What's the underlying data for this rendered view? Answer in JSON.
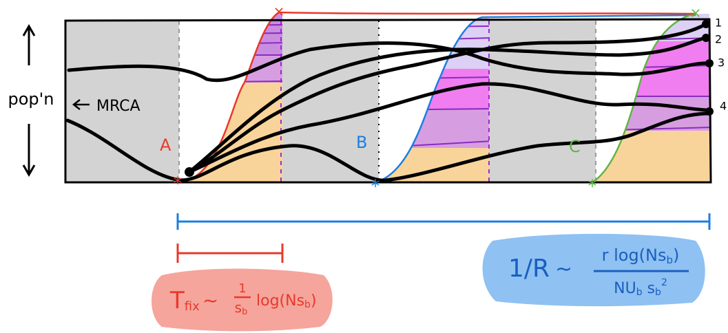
{
  "axis_label": "pop'n",
  "mrca_label": "MRCA",
  "sweeps": [
    "A",
    "B",
    "C"
  ],
  "lineages": [
    "1",
    "2",
    "3",
    "4"
  ],
  "t_fix": {
    "symbol": "T",
    "subscript": "fix",
    "relation": "~",
    "numerator": "1",
    "denominator": "s",
    "denominator_sub": "b",
    "log_open": "log(Ns",
    "log_sub": "b",
    "log_close": ")"
  },
  "rate": {
    "lhs": "1/R",
    "relation": "~",
    "numerator_open": "r log(Ns",
    "numerator_sub": "b",
    "numerator_close": ")",
    "denominator_n": "NU",
    "denominator_n_sub": "b",
    "denominator_s": " s",
    "denominator_s_sub": "b",
    "denominator_sup": "2"
  }
}
